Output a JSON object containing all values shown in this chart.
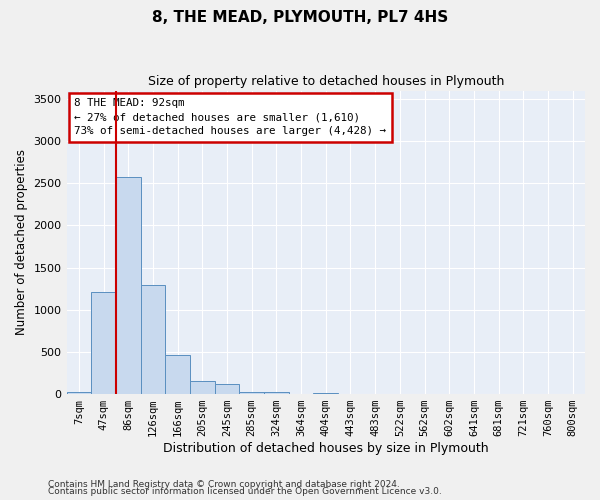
{
  "title": "8, THE MEAD, PLYMOUTH, PL7 4HS",
  "subtitle": "Size of property relative to detached houses in Plymouth",
  "xlabel": "Distribution of detached houses by size in Plymouth",
  "ylabel": "Number of detached properties",
  "bar_color": "#c8d9ee",
  "bar_edge_color": "#5a8fc0",
  "background_color": "#e8eef7",
  "grid_color": "#ffffff",
  "categories": [
    "7sqm",
    "47sqm",
    "86sqm",
    "126sqm",
    "166sqm",
    "205sqm",
    "245sqm",
    "285sqm",
    "324sqm",
    "364sqm",
    "404sqm",
    "443sqm",
    "483sqm",
    "522sqm",
    "562sqm",
    "602sqm",
    "641sqm",
    "681sqm",
    "721sqm",
    "760sqm",
    "800sqm"
  ],
  "values": [
    30,
    1210,
    2580,
    1290,
    460,
    160,
    120,
    30,
    20,
    5,
    15,
    5,
    0,
    0,
    0,
    0,
    0,
    0,
    0,
    0,
    0
  ],
  "ylim": [
    0,
    3600
  ],
  "yticks": [
    0,
    500,
    1000,
    1500,
    2000,
    2500,
    3000,
    3500
  ],
  "annotation_line1": "8 THE MEAD: 92sqm",
  "annotation_line2": "← 27% of detached houses are smaller (1,610)",
  "annotation_line3": "73% of semi-detached houses are larger (4,428) →",
  "annotation_box_color": "#ffffff",
  "annotation_box_edge": "#cc0000",
  "marker_line_color": "#cc0000",
  "marker_bin_index": 2,
  "footer1": "Contains HM Land Registry data © Crown copyright and database right 2024.",
  "footer2": "Contains public sector information licensed under the Open Government Licence v3.0."
}
